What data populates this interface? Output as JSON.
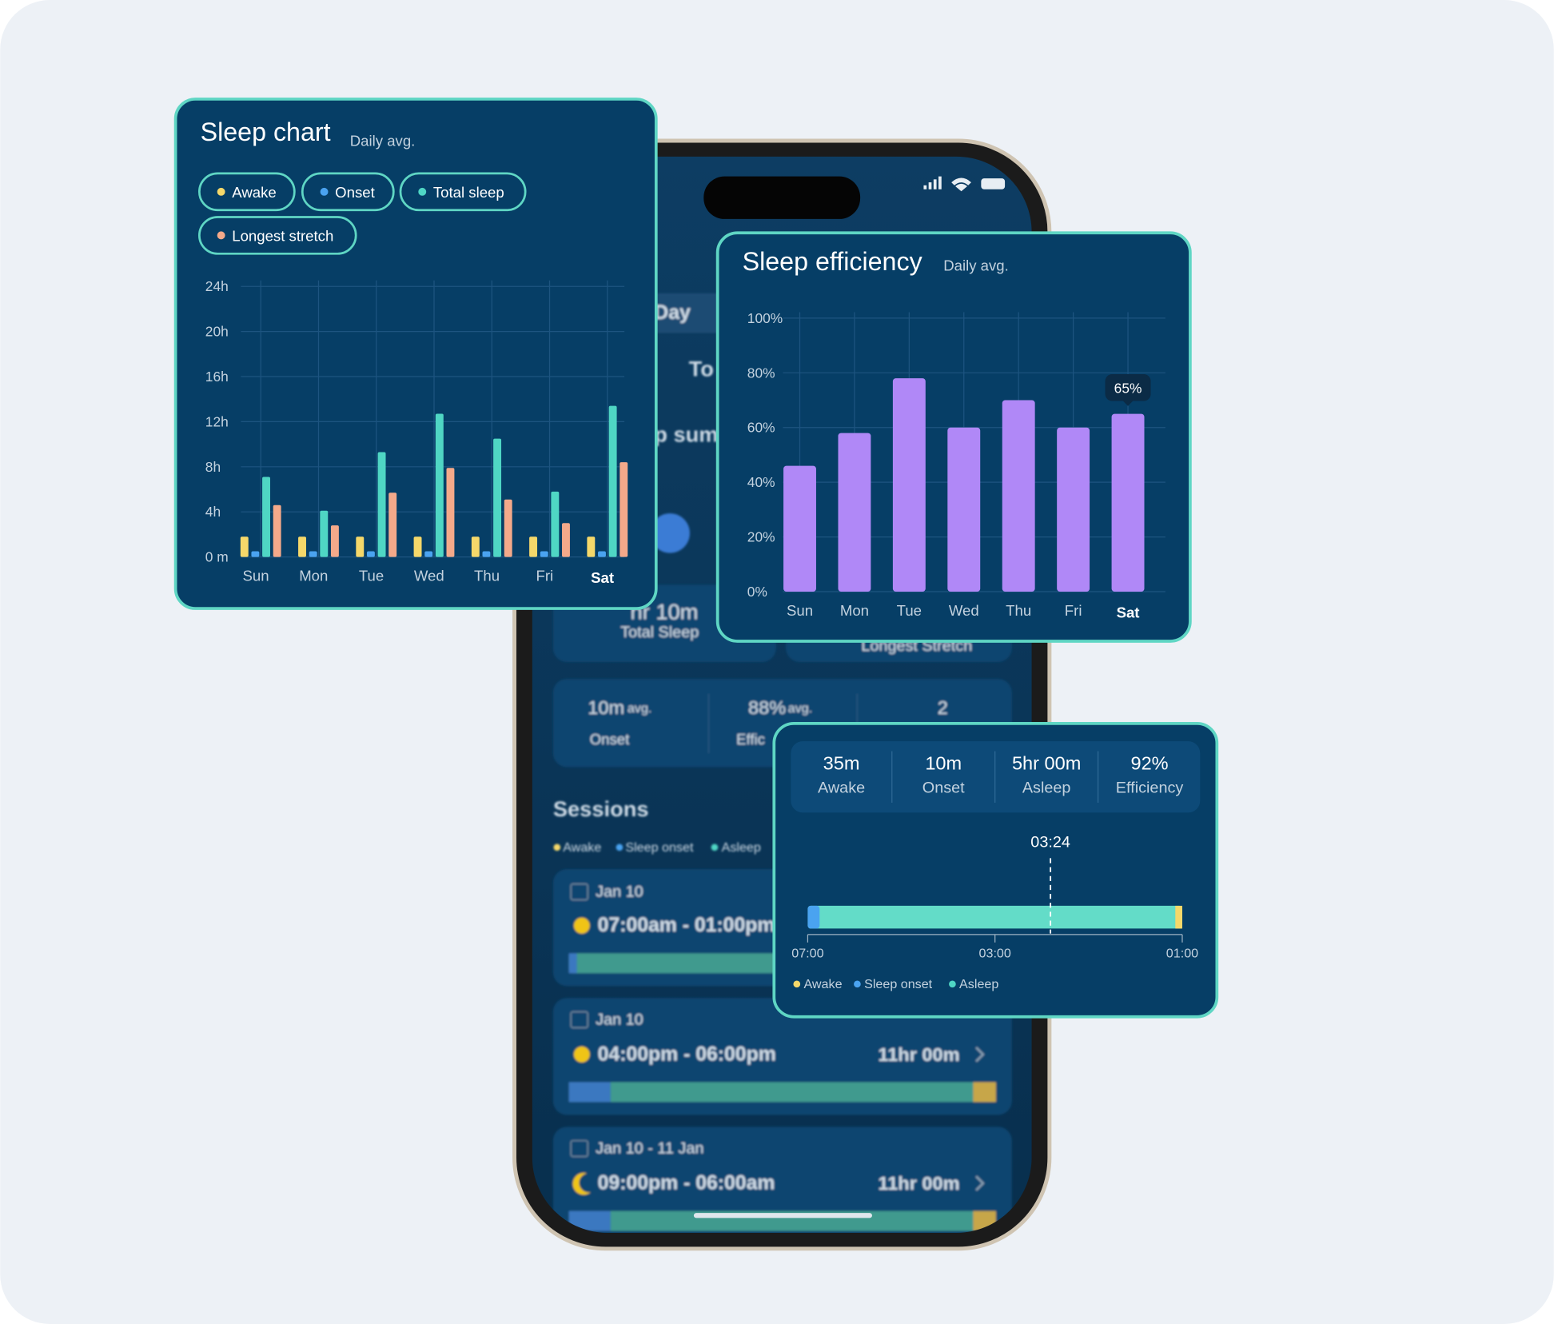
{
  "chart_data": [
    {
      "type": "bar",
      "title": "Sleep chart",
      "subtitle": "Daily avg.",
      "categories": [
        "Sun",
        "Mon",
        "Tue",
        "Wed",
        "Thu",
        "Fri",
        "Sat"
      ],
      "series": [
        {
          "name": "Awake",
          "color": "#f5d86a",
          "values": [
            1.8,
            1.8,
            1.8,
            1.8,
            1.8,
            1.8,
            1.8
          ]
        },
        {
          "name": "Onset",
          "color": "#4aa3f0",
          "values": [
            0.5,
            0.5,
            0.5,
            0.5,
            0.5,
            0.5,
            0.5
          ]
        },
        {
          "name": "Total sleep",
          "color": "#4fd6c4",
          "values": [
            7.1,
            4.1,
            9.3,
            12.7,
            10.5,
            5.8,
            13.4
          ]
        },
        {
          "name": "Longest stretch",
          "color": "#f4a98a",
          "values": [
            4.6,
            2.8,
            5.7,
            7.9,
            5.1,
            3.0,
            8.4
          ]
        }
      ],
      "ylim": [
        0,
        24
      ],
      "yticks": [
        {
          "value": 0,
          "label": "0 m"
        },
        {
          "value": 4,
          "label": "4h"
        },
        {
          "value": 8,
          "label": "8h"
        },
        {
          "value": 12,
          "label": "12h"
        },
        {
          "value": 16,
          "label": "16h"
        },
        {
          "value": 20,
          "label": "20h"
        },
        {
          "value": 24,
          "label": "24h"
        }
      ],
      "grid": true,
      "legend": "top"
    },
    {
      "type": "bar",
      "title": "Sleep efficiency",
      "subtitle": "Daily avg.",
      "categories": [
        "Sun",
        "Mon",
        "Tue",
        "Wed",
        "Thu",
        "Fri",
        "Sat"
      ],
      "values": [
        46,
        58,
        78,
        60,
        70,
        60,
        65
      ],
      "value_labels": [
        null,
        null,
        null,
        null,
        null,
        null,
        "65%"
      ],
      "color": "#b088f7",
      "ylim": [
        0,
        100
      ],
      "yticks": [
        {
          "value": 0,
          "label": "0%"
        },
        {
          "value": 20,
          "label": "20%"
        },
        {
          "value": 40,
          "label": "40%"
        },
        {
          "value": 60,
          "label": "60%"
        },
        {
          "value": 80,
          "label": "80%"
        },
        {
          "value": 100,
          "label": "100%"
        }
      ],
      "grid": true
    }
  ],
  "session_card": {
    "stats": [
      {
        "value": "35m",
        "label": "Awake"
      },
      {
        "value": "10m",
        "label": "Onset"
      },
      {
        "value": "5hr 00m",
        "label": "Asleep"
      },
      {
        "value": "92%",
        "label": "Efficiency"
      }
    ],
    "marker": "03:24",
    "axis_labels": [
      "07:00",
      "03:00",
      "01:00"
    ],
    "legend": [
      "Awake",
      "Sleep onset",
      "Asleep"
    ]
  },
  "phone": {
    "tab": "Day",
    "heading": "To",
    "section": "p sum",
    "total_sleep": {
      "value": "hr 10m",
      "label": "Total Sleep"
    },
    "longest_stretch": "Longest Stretch",
    "stats": [
      {
        "value": "10m",
        "unit": "avg.",
        "label": "Onset"
      },
      {
        "value": "88%",
        "unit": "avg.",
        "label": "Effic"
      },
      {
        "value": "2"
      }
    ],
    "sessions_title": "Sessions",
    "legend": [
      "Awake",
      "Sleep onset",
      "Asleep"
    ],
    "sessions": [
      {
        "date": "Jan 10",
        "time": "07:00am - 01:00pm"
      },
      {
        "date": "Jan 10",
        "time": "04:00pm - 06:00pm",
        "duration": "11hr 00m"
      },
      {
        "date": "Jan 10 - 11 Jan",
        "time": "09:00pm - 06:00am",
        "duration": "11hr 00m"
      }
    ]
  }
}
